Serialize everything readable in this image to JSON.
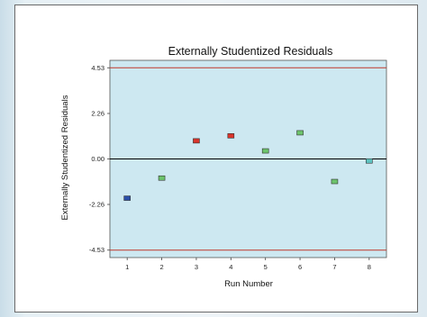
{
  "chart_data": {
    "type": "scatter",
    "title": "Externally Studentized Residuals",
    "xlabel": "Run Number",
    "ylabel": "Externally Studentized Residuals",
    "x": [
      1,
      2,
      3,
      4,
      5,
      6,
      7,
      8
    ],
    "y": [
      -1.95,
      -0.95,
      0.9,
      1.15,
      0.4,
      1.3,
      -1.12,
      -0.1
    ],
    "xticks": [
      "1",
      "2",
      "3",
      "4",
      "5",
      "6",
      "7",
      "8"
    ],
    "yticks": [
      "4.53",
      "2.26",
      "0.00",
      "-2.26",
      "-4.53"
    ],
    "ylim": [
      -4.9,
      4.9
    ],
    "xlim": [
      0.5,
      8.5
    ],
    "limit_lines": [
      4.53,
      -4.53
    ],
    "zero_line": 0,
    "point_colors": [
      "#2b4fa8",
      "#6cc46c",
      "#d9342b",
      "#d9342b",
      "#6cc46c",
      "#6cc46c",
      "#6cc46c",
      "#5cc2c0"
    ],
    "colors": {
      "plot_bg": "#cde8f1",
      "limit_line": "#c0392b",
      "zero_line": "#000000",
      "marker_edge": "#333333"
    }
  }
}
